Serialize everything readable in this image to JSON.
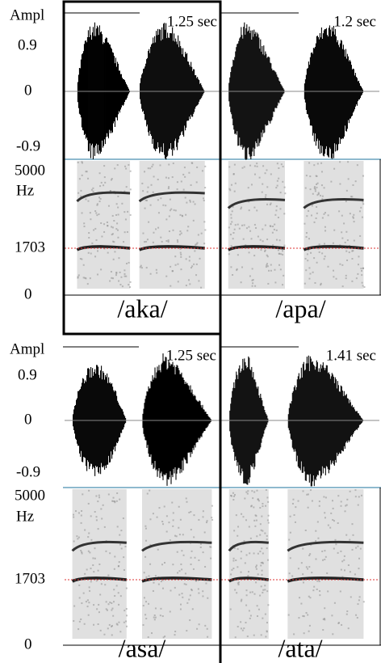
{
  "axis_labels": {
    "amplitude": "Ampl",
    "amp_max": "0.9",
    "amp_zero": "0",
    "amp_min": "-0.9",
    "freq_max": "5000",
    "freq_unit": "Hz",
    "freq_mark": "1703",
    "freq_zero": "0"
  },
  "panels": [
    {
      "word": "/aka/",
      "duration": "1.25 sec"
    },
    {
      "word": "/apa/",
      "duration": "1.2 sec"
    },
    {
      "word": "/asa/",
      "duration": "1.25 sec"
    },
    {
      "word": "/ata/",
      "duration": "1.41 sec"
    }
  ]
}
